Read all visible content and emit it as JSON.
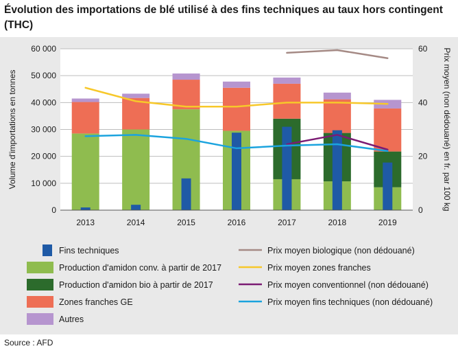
{
  "title": "Évolution des importations de blé utilisé à des fins techniques au taux hors contingent (THC)",
  "source": "Source : AFD",
  "colors": {
    "fins_techniques": "#1f5aa6",
    "amidon_conv": "#8fbc4f",
    "amidon_bio": "#2c6b2c",
    "zones_franches": "#ee6e55",
    "autres": "#b695cf",
    "prix_bio": "#a58a85",
    "prix_zones": "#f7c82a",
    "prix_conv": "#7b1b73",
    "prix_fins": "#1aa3de",
    "grid": "#bdbdbd",
    "plot_bg": "#ffffff"
  },
  "chart_data": {
    "type": "bar",
    "title": "Évolution des importations de blé utilisé à des fins techniques au taux hors contingent (THC)",
    "categories": [
      "2013",
      "2014",
      "2015",
      "2016",
      "2017",
      "2018",
      "2019"
    ],
    "ylabel_left": "Volume d'importations en tonnes",
    "ylabel_right": "Prix moyen (non dédouané) en fr. par 100 kg",
    "ylim_left": [
      0,
      60000
    ],
    "ylim_right": [
      0,
      60
    ],
    "yticks_left": [
      "0",
      "10 000",
      "20 000",
      "30 000",
      "40 000",
      "50 000",
      "60 000"
    ],
    "yticks_right": [
      "0",
      "20",
      "40",
      "60"
    ],
    "grid": true,
    "stacked_series": [
      {
        "key": "amidon_conv",
        "name": "Production d'amidon conv. à partir de 2017",
        "values": [
          28500,
          30000,
          37500,
          29500,
          11500,
          10700,
          8500
        ]
      },
      {
        "key": "amidon_bio",
        "name": "Production d'amidon bio à partir de 2017",
        "values": [
          0,
          0,
          0,
          0,
          22500,
          18000,
          13300
        ]
      },
      {
        "key": "zones_franches",
        "name": "Zones franches GE",
        "values": [
          11700,
          11700,
          11000,
          16000,
          13000,
          12500,
          16000
        ]
      },
      {
        "key": "autres",
        "name": "Autres",
        "values": [
          1300,
          1600,
          2300,
          2300,
          2300,
          2500,
          3200
        ]
      }
    ],
    "narrow_series": {
      "key": "fins_techniques",
      "name": "Fins techniques",
      "values": [
        1000,
        2000,
        11800,
        28800,
        31000,
        29700,
        17700
      ]
    },
    "line_series": [
      {
        "key": "prix_bio",
        "name": "Prix moyen biologique (non dédouané)",
        "values": [
          null,
          null,
          null,
          null,
          58.5,
          59.5,
          56.5
        ]
      },
      {
        "key": "prix_zones",
        "name": "Prix moyen zones franches",
        "values": [
          45.5,
          40.5,
          38.5,
          38.5,
          40,
          40,
          39.5
        ]
      },
      {
        "key": "prix_conv",
        "name": "Prix moyen conventionnel (non dédouané)",
        "values": [
          null,
          null,
          null,
          null,
          24.5,
          28,
          22.5
        ]
      },
      {
        "key": "prix_fins",
        "name": "Prix moyen fins techniques (non dédouané)",
        "values": [
          27.5,
          28,
          26.5,
          23,
          24,
          24.5,
          22
        ]
      }
    ]
  },
  "legend": {
    "left": [
      {
        "key": "fins_techniques",
        "label": "Fins techniques",
        "kind": "narrow"
      },
      {
        "key": "amidon_conv",
        "label": "Production d'amidon conv. à partir de 2017",
        "kind": "box"
      },
      {
        "key": "amidon_bio",
        "label": "Production d'amidon bio à partir de 2017",
        "kind": "box"
      },
      {
        "key": "zones_franches",
        "label": "Zones franches GE",
        "kind": "box"
      },
      {
        "key": "autres",
        "label": "Autres",
        "kind": "box"
      }
    ],
    "right": [
      {
        "key": "prix_bio",
        "label": "Prix moyen biologique (non dédouané)"
      },
      {
        "key": "prix_zones",
        "label": "Prix moyen zones franches"
      },
      {
        "key": "prix_conv",
        "label": "Prix moyen conventionnel (non dédouané)"
      },
      {
        "key": "prix_fins",
        "label": "Prix moyen fins techniques (non dédouané)"
      }
    ]
  }
}
